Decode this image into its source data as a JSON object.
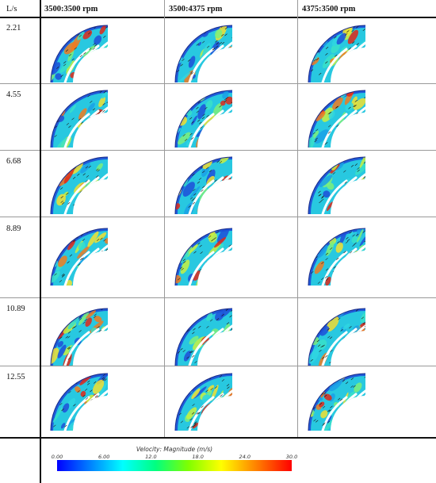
{
  "table": {
    "unit_label": "L/s",
    "columns": [
      "3500:3500 rpm",
      "3500:4375 rpm",
      "4375:3500 rpm"
    ],
    "rows": [
      "2.21",
      "4.55",
      "6.68",
      "8.89",
      "10.89",
      "12.55"
    ]
  },
  "legend": {
    "title": "Velocity: Magnitude (m/s)",
    "ticks": [
      "0.00",
      "6.00",
      "12.0",
      "18.0",
      "24.0",
      "30.0"
    ],
    "min": 0,
    "max": 30,
    "colors": [
      "#0000ff",
      "#0080ff",
      "#00ffff",
      "#00ff80",
      "#80ff00",
      "#ffff00",
      "#ff8000",
      "#ff0000"
    ]
  }
}
